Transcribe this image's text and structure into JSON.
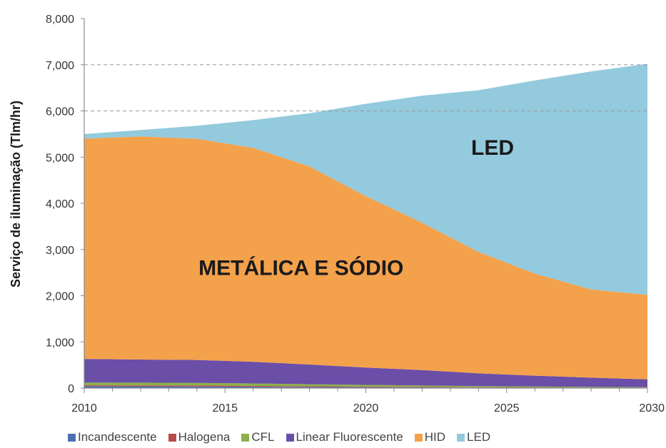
{
  "chart_data": {
    "type": "area",
    "stacked": true,
    "x": [
      2010,
      2012,
      2014,
      2016,
      2018,
      2020,
      2022,
      2024,
      2026,
      2028,
      2030
    ],
    "xticks": [
      2010,
      2015,
      2020,
      2025,
      2030
    ],
    "xtick_labels": [
      "2010",
      "2015",
      "2020",
      "2025",
      "2030"
    ],
    "yticks": [
      0,
      1000,
      2000,
      3000,
      4000,
      5000,
      6000,
      7000,
      8000
    ],
    "ytick_labels": [
      "0",
      "1,000",
      "2,000",
      "3,000",
      "4,000",
      "5,000",
      "6,000",
      "7,000",
      "8,000"
    ],
    "ylim": [
      0,
      8000
    ],
    "xlim": [
      2010,
      2030
    ],
    "ylabel": "Serviço de iluminação (Tlm/hr)",
    "xlabel": "",
    "grid": {
      "y": [
        6000,
        7000
      ],
      "style": "dashed"
    },
    "legend_position": "bottom",
    "series": [
      {
        "name": "Incandescente",
        "color": "#4f6fb3",
        "values": [
          40,
          38,
          35,
          30,
          25,
          20,
          15,
          10,
          8,
          5,
          5
        ]
      },
      {
        "name": "Halogena",
        "color": "#b84a4a",
        "values": [
          20,
          20,
          20,
          18,
          15,
          12,
          10,
          8,
          6,
          5,
          5
        ]
      },
      {
        "name": "CFL",
        "color": "#8ab04a",
        "values": [
          60,
          60,
          58,
          52,
          45,
          38,
          30,
          25,
          20,
          15,
          10
        ]
      },
      {
        "name": "Linear Fluorescente",
        "color": "#6a4ea8",
        "values": [
          510,
          500,
          495,
          470,
          425,
          375,
          335,
          275,
          235,
          200,
          170
        ]
      },
      {
        "name": "HID",
        "color": "#f4a14c",
        "values": [
          4770,
          4830,
          4790,
          4630,
          4290,
          3710,
          3190,
          2630,
          2210,
          1910,
          1830
        ]
      },
      {
        "name": "LED",
        "color": "#93cadd",
        "values": [
          100,
          140,
          280,
          600,
          1150,
          2000,
          2750,
          3500,
          4180,
          4720,
          5000
        ]
      }
    ],
    "annotations": [
      {
        "text": "LED",
        "x": 2024.5,
        "y": 5050
      },
      {
        "text": "METÁLICA E SÓDIO",
        "x": 2017.7,
        "y": 2450
      }
    ]
  },
  "legend": {
    "items": [
      {
        "label": "Incandescente",
        "color": "#4f6fb3"
      },
      {
        "label": "Halogena",
        "color": "#b84a4a"
      },
      {
        "label": "CFL",
        "color": "#8ab04a"
      },
      {
        "label": "Linear Fluorescente",
        "color": "#6a4ea8"
      },
      {
        "label": "HID",
        "color": "#f4a14c"
      },
      {
        "label": "LED",
        "color": "#93cadd"
      }
    ]
  }
}
